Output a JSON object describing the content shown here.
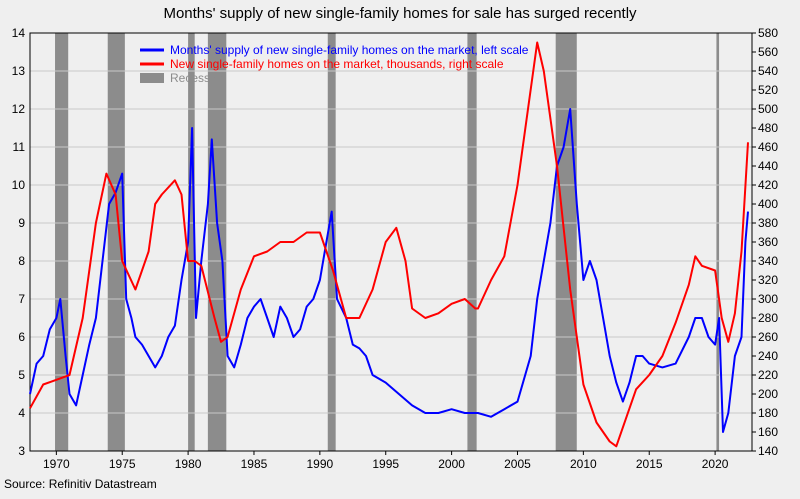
{
  "chart_data": {
    "type": "line",
    "title": "Months' supply of new single-family homes for sale has surged recently",
    "source": "Source: Refinitiv Datastream",
    "xlim": [
      1968,
      2022.8
    ],
    "xticks": [
      1970,
      1975,
      1980,
      1985,
      1990,
      1995,
      2000,
      2005,
      2010,
      2015,
      2020
    ],
    "ylim": [
      3,
      14
    ],
    "yticks": [
      3,
      4,
      5,
      6,
      7,
      8,
      9,
      10,
      11,
      12,
      13,
      14
    ],
    "y2lim": [
      140,
      580
    ],
    "y2ticks": [
      140,
      160,
      180,
      200,
      220,
      240,
      260,
      280,
      300,
      320,
      340,
      360,
      380,
      400,
      420,
      440,
      460,
      480,
      500,
      520,
      540,
      560,
      580
    ],
    "grid": true,
    "legend": "upper left",
    "recessions": {
      "name": "Recession",
      "color": "#8c8c8c",
      "spans": [
        [
          1969.9,
          1970.9
        ],
        [
          1973.9,
          1975.2
        ],
        [
          1980.0,
          1980.5
        ],
        [
          1981.5,
          1982.9
        ],
        [
          1990.6,
          1991.2
        ],
        [
          2001.2,
          2001.9
        ],
        [
          2007.9,
          2009.5
        ],
        [
          2020.1,
          2020.3
        ]
      ]
    },
    "series": [
      {
        "name": "Months' supply of new single-family homes on the market, left scale",
        "color": "#0000ff",
        "axis": "y",
        "x": [
          1968,
          1968.5,
          1969,
          1969.5,
          1970,
          1970.3,
          1970.7,
          1971,
          1971.5,
          1972,
          1972.5,
          1973,
          1973.5,
          1974,
          1974.5,
          1975,
          1975.3,
          1975.7,
          1976,
          1976.5,
          1977,
          1977.5,
          1978,
          1978.5,
          1979,
          1979.5,
          1980,
          1980.3,
          1980.6,
          1981,
          1981.5,
          1981.8,
          1982.2,
          1982.6,
          1983,
          1983.5,
          1984,
          1984.5,
          1985,
          1985.5,
          1986,
          1986.5,
          1987,
          1987.5,
          1988,
          1988.5,
          1989,
          1989.5,
          1990,
          1990.5,
          1990.9,
          1991.3,
          1992,
          1992.5,
          1993,
          1993.5,
          1994,
          1995,
          1996,
          1997,
          1998,
          1999,
          2000,
          2001,
          2002,
          2003,
          2004,
          2005,
          2006,
          2006.5,
          2007,
          2007.5,
          2008,
          2008.5,
          2009,
          2009.5,
          2010,
          2010.5,
          2011,
          2011.5,
          2012,
          2012.5,
          2013,
          2013.5,
          2014,
          2014.5,
          2015,
          2016,
          2017,
          2018,
          2018.5,
          2019,
          2019.5,
          2020,
          2020.3,
          2020.6,
          2021,
          2021.5,
          2022,
          2022.3,
          2022.5
        ],
        "values": [
          4.5,
          5.3,
          5.5,
          6.2,
          6.5,
          7.0,
          5.5,
          4.5,
          4.2,
          5.0,
          5.8,
          6.5,
          8.0,
          9.5,
          9.8,
          10.3,
          7.0,
          6.5,
          6.0,
          5.8,
          5.5,
          5.2,
          5.5,
          6.0,
          6.3,
          7.5,
          8.5,
          11.5,
          6.5,
          8.0,
          9.5,
          11.2,
          9.0,
          8.0,
          5.5,
          5.2,
          5.8,
          6.5,
          6.8,
          7.0,
          6.5,
          6.0,
          6.8,
          6.5,
          6.0,
          6.2,
          6.8,
          7.0,
          7.5,
          8.5,
          9.3,
          7.0,
          6.5,
          5.8,
          5.7,
          5.5,
          5.0,
          4.8,
          4.5,
          4.2,
          4.0,
          4.0,
          4.1,
          4.0,
          4.0,
          3.9,
          4.1,
          4.3,
          5.5,
          7.0,
          8.0,
          9.0,
          10.5,
          11.0,
          12.0,
          9.5,
          7.5,
          8.0,
          7.5,
          6.5,
          5.5,
          4.8,
          4.3,
          4.8,
          5.5,
          5.5,
          5.3,
          5.2,
          5.3,
          6.0,
          6.5,
          6.5,
          6.0,
          5.8,
          6.5,
          3.5,
          4.0,
          5.5,
          6.0,
          8.5,
          9.3
        ]
      },
      {
        "name": "New single-family homes on the market, thousands, right scale",
        "color": "#ff0000",
        "axis": "y2",
        "x": [
          1968,
          1969,
          1970,
          1971,
          1972,
          1973,
          1973.8,
          1974.5,
          1975,
          1976,
          1977,
          1977.5,
          1978,
          1979,
          1979.5,
          1980,
          1980.5,
          1981,
          1982,
          1982.5,
          1983,
          1984,
          1985,
          1986,
          1987,
          1988,
          1989,
          1990,
          1991,
          1992,
          1993,
          1994,
          1995,
          1995.8,
          1996.5,
          1997,
          1998,
          1999,
          2000,
          2001,
          2001.8,
          2002,
          2003,
          2004,
          2005,
          2005.8,
          2006.5,
          2007,
          2008,
          2009,
          2010,
          2011,
          2012,
          2012.5,
          2013,
          2014,
          2015,
          2016,
          2017,
          2018,
          2018.5,
          2019,
          2020,
          2020.5,
          2021,
          2021.5,
          2022,
          2022.5
        ],
        "values": [
          185,
          210,
          215,
          220,
          280,
          380,
          432,
          410,
          340,
          310,
          350,
          400,
          410,
          425,
          410,
          340,
          340,
          335,
          280,
          255,
          260,
          310,
          345,
          350,
          360,
          360,
          370,
          370,
          330,
          280,
          280,
          310,
          360,
          375,
          340,
          290,
          280,
          285,
          295,
          300,
          290,
          290,
          320,
          345,
          420,
          500,
          570,
          540,
          440,
          310,
          210,
          170,
          150,
          145,
          165,
          205,
          220,
          240,
          275,
          315,
          345,
          335,
          330,
          280,
          255,
          285,
          350,
          465
        ]
      }
    ]
  }
}
